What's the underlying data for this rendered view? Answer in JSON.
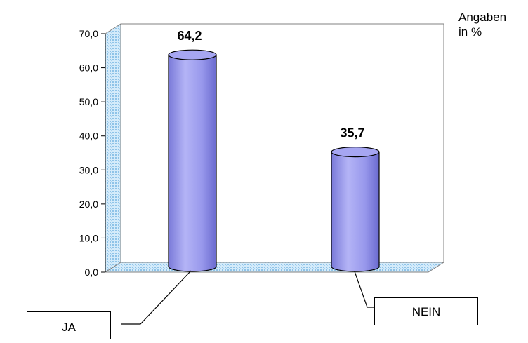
{
  "unit_label": [
    "Angaben",
    "in %"
  ],
  "callouts": {
    "ja": "JA",
    "nein": "NEIN"
  },
  "colors": {
    "bar_fill": "#9999ee",
    "bar_highlight": "#b8b8f7",
    "bar_shade": "#6f6fd3",
    "bar_outline": "#000000",
    "wall_texture": "#8ec3e8",
    "background": "#ffffff"
  },
  "chart_data": {
    "type": "bar",
    "style": "3d-cylinder",
    "categories": [
      "JA",
      "NEIN"
    ],
    "values": [
      64.2,
      35.7
    ],
    "data_labels": [
      "64,2",
      "35,7"
    ],
    "y_ticks": [
      "0,0",
      "10,0",
      "20,0",
      "30,0",
      "40,0",
      "50,0",
      "60,0",
      "70,0"
    ],
    "ylim": [
      0,
      70
    ],
    "title": "",
    "xlabel": "",
    "ylabel": "",
    "grid": false,
    "legend": "none"
  }
}
